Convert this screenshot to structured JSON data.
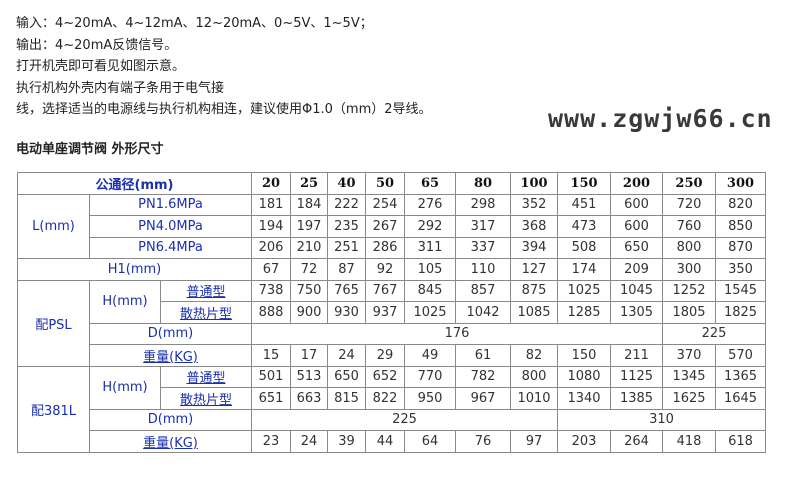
{
  "intro": [
    "输入：4~20mA、4~12mA、12~20mA、0~5V、1~5V；",
    "输出：4~20mA反馈信号。",
    "打开机壳即可看见如图示意。",
    "执行机构外壳内有端子条用于电气接",
    "线，选择适当的电源线与执行机构相连，建议使用Φ1.0（mm）2导线。"
  ],
  "title": "电动单座调节阀 外形尺寸",
  "table": {
    "header_label": "公通径(mm)",
    "sizes": [
      "20",
      "25",
      "40",
      "50",
      "65",
      "80",
      "100",
      "150",
      "200",
      "250",
      "300"
    ],
    "L_label": "L(mm)",
    "L_rows": [
      {
        "label": "PN1.6MPa",
        "values": [
          "181",
          "184",
          "222",
          "254",
          "276",
          "298",
          "352",
          "451",
          "600",
          "720",
          "820"
        ]
      },
      {
        "label": "PN4.0MPa",
        "values": [
          "194",
          "197",
          "235",
          "267",
          "292",
          "317",
          "368",
          "473",
          "600",
          "760",
          "850"
        ]
      },
      {
        "label": "PN6.4MPa",
        "values": [
          "206",
          "210",
          "251",
          "286",
          "311",
          "337",
          "394",
          "508",
          "650",
          "800",
          "870"
        ]
      }
    ],
    "H1": {
      "label": "H1(mm)",
      "values": [
        "67",
        "72",
        "87",
        "92",
        "105",
        "110",
        "127",
        "174",
        "209",
        "300",
        "350"
      ]
    },
    "groups": [
      {
        "label": "配PSL",
        "h_label": "H(mm)",
        "h_rows": [
          {
            "label": "普通型",
            "values": [
              "738",
              "750",
              "765",
              "767",
              "845",
              "857",
              "875",
              "1025",
              "1045",
              "1252",
              "1545"
            ]
          },
          {
            "label": "散热片型",
            "values": [
              "888",
              "900",
              "930",
              "937",
              "1025",
              "1042",
              "1085",
              "1285",
              "1305",
              "1805",
              "1825"
            ]
          }
        ],
        "d_label": "D(mm)",
        "d_values": [
          "176",
          "225"
        ],
        "w_label": "重量(KG)",
        "w_values": [
          "15",
          "17",
          "24",
          "29",
          "49",
          "61",
          "82",
          "150",
          "211",
          "370",
          "570"
        ]
      },
      {
        "label": "配381L",
        "h_label": "H(mm)",
        "h_rows": [
          {
            "label": "普通型",
            "values": [
              "501",
              "513",
              "650",
              "652",
              "770",
              "782",
              "800",
              "1080",
              "1125",
              "1345",
              "1365"
            ]
          },
          {
            "label": "散热片型",
            "values": [
              "651",
              "663",
              "815",
              "822",
              "950",
              "967",
              "1010",
              "1340",
              "1385",
              "1625",
              "1645"
            ]
          }
        ],
        "d_label": "D(mm)",
        "d_values": [
          "225",
          "310"
        ],
        "w_label": "重量(KG)",
        "w_values": [
          "23",
          "24",
          "39",
          "44",
          "64",
          "76",
          "97",
          "203",
          "264",
          "418",
          "618"
        ]
      }
    ]
  },
  "watermark": "www.zgwjw66.cn"
}
